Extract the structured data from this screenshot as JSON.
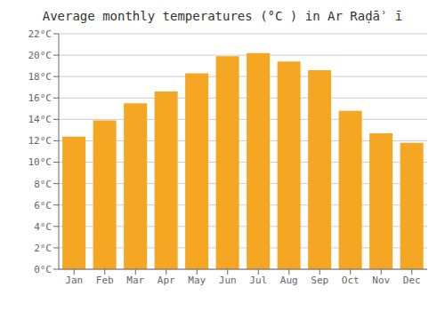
{
  "chart_data": {
    "type": "bar",
    "title": "Average monthly temperatures (°C ) in Ar Raḍāʾ ī",
    "categories": [
      "Jan",
      "Feb",
      "Mar",
      "Apr",
      "May",
      "Jun",
      "Jul",
      "Aug",
      "Sep",
      "Oct",
      "Nov",
      "Dec"
    ],
    "values": [
      12.4,
      13.9,
      15.5,
      16.6,
      18.3,
      19.9,
      20.2,
      19.4,
      18.6,
      14.8,
      12.7,
      11.8
    ],
    "color": "#F5A623",
    "ylim": [
      0,
      22
    ],
    "yticks": [
      {
        "value": 0,
        "label": "0°C"
      },
      {
        "value": 2,
        "label": "2°C"
      },
      {
        "value": 4,
        "label": "4°C"
      },
      {
        "value": 6,
        "label": "6°C"
      },
      {
        "value": 8,
        "label": "8°C"
      },
      {
        "value": 10,
        "label": "10°C"
      },
      {
        "value": 12,
        "label": "12°C"
      },
      {
        "value": 14,
        "label": "14°C"
      },
      {
        "value": 16,
        "label": "16°C"
      },
      {
        "value": 18,
        "label": "18°C"
      },
      {
        "value": 20,
        "label": "20°C"
      },
      {
        "value": 22,
        "label": "22°C"
      }
    ],
    "grid": true
  }
}
